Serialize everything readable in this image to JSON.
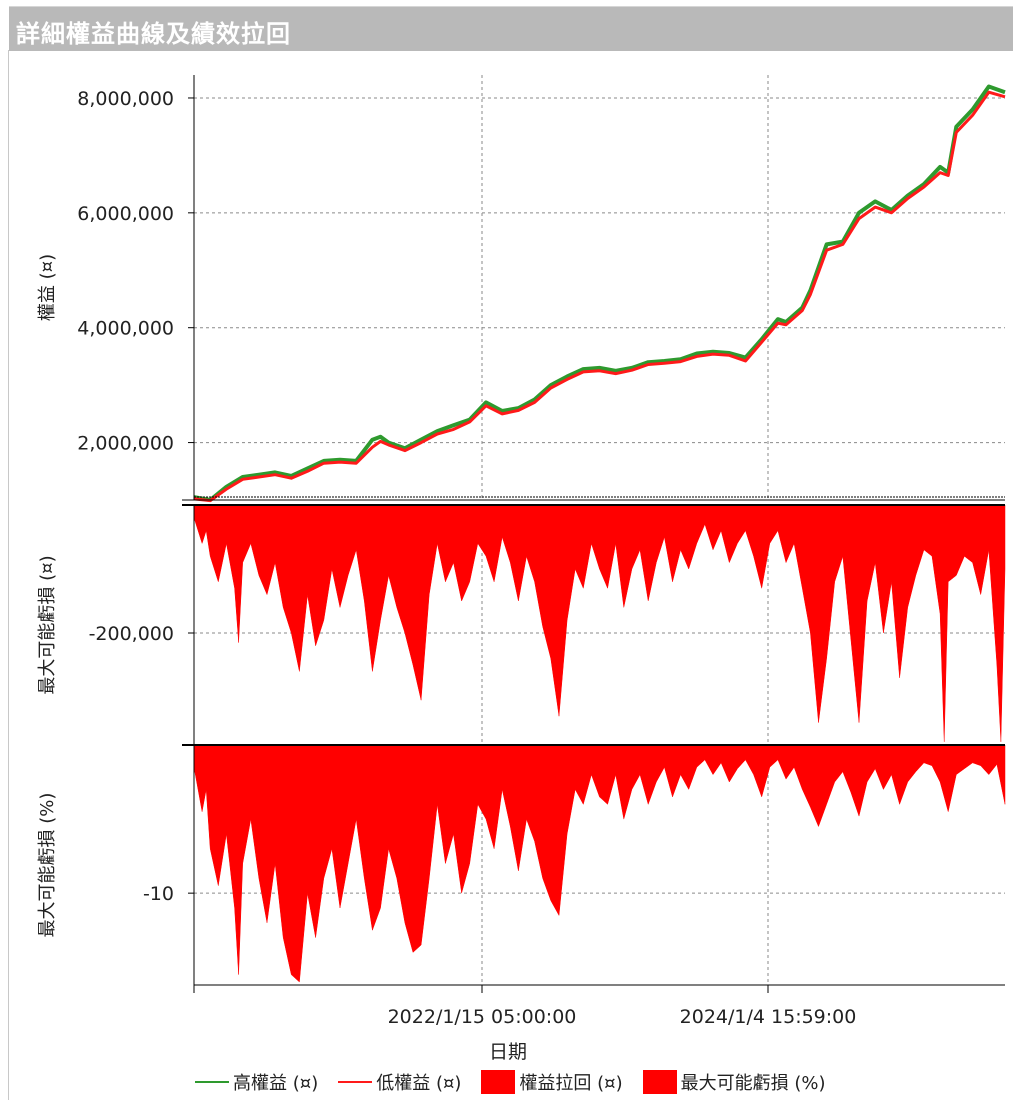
{
  "window": {
    "title": "詳細權益曲線及績效拉回"
  },
  "colors": {
    "high": "#2e9a2e",
    "low": "#ff1a1a",
    "fill": "#ff0000",
    "grid": "#8a8a8a",
    "axis": "#000000"
  },
  "chart_data": [
    {
      "type": "line",
      "panel": "equity",
      "ylabel": "權益 (¤)",
      "yticks": [
        {
          "v": 2000000,
          "label": "2,000,000"
        },
        {
          "v": 4000000,
          "label": "4,000,000"
        },
        {
          "v": 6000000,
          "label": "6,000,000"
        },
        {
          "v": 8000000,
          "label": "8,000,000"
        }
      ],
      "ylim": [
        1000000,
        8400000
      ],
      "xlim": [
        0,
        100
      ],
      "series": [
        {
          "name": "高權益 (¤)",
          "color": "#2e9a2e",
          "x": [
            0,
            2,
            4,
            6,
            8,
            10,
            12,
            14,
            16,
            18,
            20,
            22,
            23,
            24,
            26,
            28,
            30,
            32,
            34,
            36,
            38,
            40,
            42,
            44,
            46,
            48,
            50,
            52,
            54,
            56,
            58,
            60,
            62,
            64,
            66,
            68,
            70,
            72,
            73,
            75,
            76,
            78,
            80,
            82,
            84,
            86,
            88,
            90,
            92,
            93,
            94,
            96,
            98,
            100
          ],
          "y": [
            1050000,
            1000000,
            1230000,
            1400000,
            1440000,
            1480000,
            1420000,
            1550000,
            1680000,
            1700000,
            1680000,
            2050000,
            2100000,
            2000000,
            1900000,
            2050000,
            2200000,
            2300000,
            2400000,
            2700000,
            2550000,
            2600000,
            2750000,
            3000000,
            3150000,
            3280000,
            3300000,
            3250000,
            3300000,
            3400000,
            3420000,
            3450000,
            3550000,
            3580000,
            3560000,
            3480000,
            3800000,
            4150000,
            4100000,
            4350000,
            4650000,
            5450000,
            5500000,
            6000000,
            6200000,
            6050000,
            6300000,
            6500000,
            6800000,
            6700000,
            7500000,
            7800000,
            8200000,
            8100000
          ]
        },
        {
          "name": "低權益 (¤)",
          "color": "#ff1a1a",
          "x": [
            0,
            2,
            4,
            6,
            8,
            10,
            12,
            14,
            16,
            18,
            20,
            22,
            23,
            24,
            26,
            28,
            30,
            32,
            34,
            36,
            38,
            40,
            42,
            44,
            46,
            48,
            50,
            52,
            54,
            56,
            58,
            60,
            62,
            64,
            66,
            68,
            70,
            72,
            73,
            75,
            76,
            78,
            80,
            82,
            84,
            86,
            88,
            90,
            92,
            93,
            94,
            96,
            98,
            100
          ],
          "y": [
            1020000,
            990000,
            1190000,
            1360000,
            1400000,
            1440000,
            1380000,
            1500000,
            1640000,
            1660000,
            1640000,
            1920000,
            2020000,
            1960000,
            1860000,
            2000000,
            2150000,
            2230000,
            2360000,
            2640000,
            2500000,
            2560000,
            2700000,
            2950000,
            3100000,
            3230000,
            3250000,
            3200000,
            3260000,
            3360000,
            3380000,
            3410000,
            3500000,
            3540000,
            3520000,
            3420000,
            3750000,
            4080000,
            4050000,
            4300000,
            4580000,
            5350000,
            5450000,
            5900000,
            6100000,
            6000000,
            6250000,
            6450000,
            6700000,
            6650000,
            7400000,
            7700000,
            8100000,
            8020000
          ]
        }
      ]
    },
    {
      "type": "area",
      "panel": "drawdown",
      "ylabel": "最大可能虧損 (¤)",
      "yticks": [
        {
          "v": -200000,
          "label": "-200,000"
        }
      ],
      "ylim": [
        -375000,
        0
      ],
      "series": [
        {
          "name": "權益拉回 (¤)",
          "color": "#ff0000",
          "x": [
            0,
            1,
            1.5,
            2,
            3,
            4,
            5,
            5.5,
            6,
            7,
            8,
            9,
            10,
            11,
            12,
            13,
            14,
            15,
            16,
            17,
            18,
            19,
            20,
            21,
            22,
            23,
            24,
            25,
            26,
            27,
            28,
            29,
            30,
            31,
            32,
            33,
            34,
            35,
            36,
            37,
            38,
            39,
            40,
            41,
            42,
            43,
            44,
            45,
            46,
            47,
            48,
            49,
            50,
            51,
            52,
            53,
            54,
            55,
            56,
            57,
            58,
            59,
            60,
            61,
            62,
            63,
            64,
            65,
            66,
            67,
            68,
            69,
            70,
            71,
            72,
            73,
            74,
            75,
            76,
            77,
            78,
            79,
            80,
            81,
            82,
            83,
            84,
            85,
            86,
            87,
            88,
            89,
            90,
            91,
            92,
            92.5,
            93,
            94,
            95,
            96,
            97,
            98,
            99,
            99.5,
            100
          ],
          "y": [
            -20000,
            -60000,
            -40000,
            -80000,
            -120000,
            -60000,
            -130000,
            -215000,
            -90000,
            -60000,
            -110000,
            -140000,
            -90000,
            -160000,
            -200000,
            -260000,
            -140000,
            -220000,
            -180000,
            -100000,
            -160000,
            -110000,
            -70000,
            -150000,
            -260000,
            -180000,
            -110000,
            -160000,
            -200000,
            -250000,
            -305000,
            -140000,
            -60000,
            -120000,
            -90000,
            -150000,
            -120000,
            -60000,
            -80000,
            -120000,
            -50000,
            -90000,
            -150000,
            -80000,
            -120000,
            -190000,
            -240000,
            -330000,
            -180000,
            -100000,
            -130000,
            -60000,
            -100000,
            -130000,
            -60000,
            -160000,
            -100000,
            -70000,
            -150000,
            -90000,
            -50000,
            -120000,
            -70000,
            -100000,
            -60000,
            -30000,
            -70000,
            -40000,
            -90000,
            -60000,
            -40000,
            -80000,
            -130000,
            -60000,
            -40000,
            -90000,
            -60000,
            -130000,
            -200000,
            -340000,
            -240000,
            -120000,
            -80000,
            -210000,
            -340000,
            -150000,
            -90000,
            -200000,
            -120000,
            -270000,
            -160000,
            -110000,
            -70000,
            -80000,
            -170000,
            -370000,
            -120000,
            -110000,
            -80000,
            -90000,
            -140000,
            -70000,
            -250000,
            -370000,
            -100000
          ]
        }
      ]
    },
    {
      "type": "area",
      "panel": "drawdown_pct",
      "ylabel": "最大可能虧損 (%)",
      "yticks": [
        {
          "v": -10,
          "label": "-10"
        }
      ],
      "ylim": [
        -16.2,
        0
      ],
      "series": [
        {
          "name": "最大可能虧損 (%)",
          "color": "#ff0000",
          "x": [
            0,
            1,
            1.5,
            2,
            3,
            4,
            5,
            5.5,
            6,
            7,
            8,
            9,
            10,
            11,
            12,
            13,
            14,
            15,
            16,
            17,
            18,
            19,
            20,
            21,
            22,
            23,
            24,
            25,
            26,
            27,
            28,
            29,
            30,
            31,
            32,
            33,
            34,
            35,
            36,
            37,
            38,
            39,
            40,
            41,
            42,
            43,
            44,
            45,
            46,
            47,
            48,
            49,
            50,
            51,
            52,
            53,
            54,
            55,
            56,
            57,
            58,
            59,
            60,
            61,
            62,
            63,
            64,
            65,
            66,
            67,
            68,
            69,
            70,
            71,
            72,
            73,
            74,
            75,
            76,
            77,
            78,
            79,
            80,
            81,
            82,
            83,
            84,
            85,
            86,
            87,
            88,
            89,
            90,
            91,
            92,
            93,
            94,
            95,
            96,
            97,
            98,
            99,
            100
          ],
          "y": [
            -1.5,
            -4.5,
            -3,
            -7,
            -9.5,
            -6,
            -11,
            -15.5,
            -8,
            -5,
            -9,
            -12,
            -8,
            -13,
            -15.5,
            -16,
            -10,
            -13,
            -9,
            -7,
            -11,
            -8,
            -5,
            -9,
            -12.5,
            -11,
            -7,
            -9,
            -12,
            -14,
            -13.5,
            -9,
            -4,
            -8,
            -6,
            -10,
            -8,
            -4,
            -5,
            -7,
            -3,
            -5.5,
            -8.5,
            -5,
            -6.5,
            -9,
            -10.5,
            -11.5,
            -6,
            -3,
            -4,
            -2,
            -3.5,
            -4,
            -2,
            -5,
            -3,
            -2,
            -4,
            -2.5,
            -1.5,
            -3.5,
            -2,
            -3,
            -1.5,
            -1,
            -2,
            -1.2,
            -2.5,
            -1.6,
            -1,
            -2,
            -3.5,
            -1.5,
            -1,
            -2.3,
            -1.5,
            -3,
            -4.2,
            -5.5,
            -4,
            -2.5,
            -1.8,
            -3.2,
            -4.8,
            -2.5,
            -1.6,
            -3,
            -2,
            -4,
            -2.5,
            -1.8,
            -1.2,
            -1.4,
            -2.5,
            -4.5,
            -2,
            -1.6,
            -1.2,
            -1.4,
            -2,
            -1.3,
            -4
          ]
        }
      ]
    }
  ],
  "xaxis": {
    "label": "日期",
    "ticks": [
      "2022/1/15 05:00:00",
      "2024/1/4 15:59:00"
    ]
  },
  "legend": [
    {
      "label": "高權益 (¤)",
      "kind": "line",
      "color": "#2e9a2e"
    },
    {
      "label": "低權益 (¤)",
      "kind": "line",
      "color": "#ff1a1a"
    },
    {
      "label": "權益拉回 (¤)",
      "kind": "box",
      "color": "#ff0000"
    },
    {
      "label": "最大可能虧損 (%)",
      "kind": "box",
      "color": "#ff0000"
    }
  ]
}
